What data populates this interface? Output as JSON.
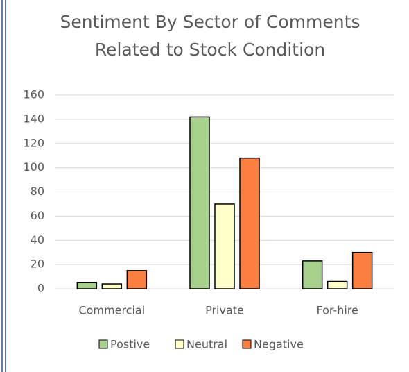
{
  "chart_data": {
    "type": "bar",
    "title": [
      "Sentiment By Sector of Comments",
      "Related to Stock Condition"
    ],
    "categories": [
      "Commercial",
      "Private",
      "For-hire"
    ],
    "series": [
      {
        "name": "Postive",
        "color": "#a9d18e",
        "values": [
          5,
          142,
          23
        ]
      },
      {
        "name": "Neutral",
        "color": "#ffffc9",
        "values": [
          4,
          70,
          6
        ]
      },
      {
        "name": "Negative",
        "color": "#fb7f3f",
        "values": [
          15,
          108,
          30
        ]
      }
    ],
    "ylim": [
      0,
      160
    ],
    "yticks": [
      0,
      20,
      40,
      60,
      80,
      100,
      120,
      140,
      160
    ],
    "grid": true,
    "legend": "bottom"
  }
}
